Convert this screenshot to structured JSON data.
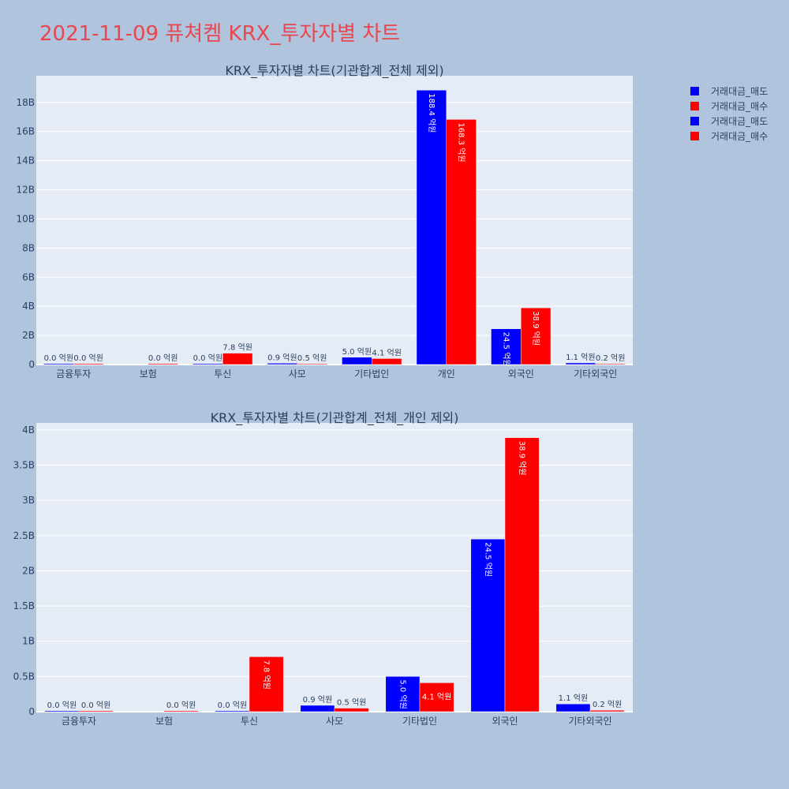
{
  "title": "2021-11-09 퓨쳐켐 KRX_투자자별 차트",
  "legend": [
    {
      "label": "거래대금_매도",
      "color": "#0000ff"
    },
    {
      "label": "거래대금_매수",
      "color": "#ff0000"
    },
    {
      "label": "거래대금_매도",
      "color": "#0000ff"
    },
    {
      "label": "거래대금_매수",
      "color": "#ff0000"
    }
  ],
  "chart_data": [
    {
      "type": "bar",
      "title": "KRX_투자자별 차트(기관합계_전체 제외)",
      "categories": [
        "금융투자",
        "보험",
        "투신",
        "사모",
        "기타법인",
        "개인",
        "외국인",
        "기타외국인"
      ],
      "series": [
        {
          "name": "거래대금_매도",
          "color": "#0000ff",
          "values": [
            0,
            null,
            0,
            90000000,
            500000000,
            18840000000,
            2450000000,
            110000000
          ],
          "labels": [
            "0.0 억원",
            "",
            "0.0 억원",
            "0.9 억원",
            "5.0 억원",
            "188.4 억원",
            "24.5 억원",
            "1.1 억원"
          ]
        },
        {
          "name": "거래대금_매수",
          "color": "#ff0000",
          "values": [
            0,
            0,
            780000000,
            50000000,
            410000000,
            16830000000,
            3890000000,
            20000000
          ],
          "labels": [
            "0.0 억원",
            "0.0 억원",
            "7.8 억원",
            "0.5 억원",
            "4.1 억원",
            "168.3 억원",
            "38.9 억원",
            "0.2 억원"
          ]
        }
      ],
      "yticks": [
        "0",
        "2B",
        "4B",
        "6B",
        "8B",
        "10B",
        "12B",
        "14B",
        "16B",
        "18B"
      ],
      "ylim": [
        0,
        19830000000
      ],
      "grid": true
    },
    {
      "type": "bar",
      "title": "KRX_투자자별 차트(기관합계_전체_개인 제외)",
      "categories": [
        "금융투자",
        "보험",
        "투신",
        "사모",
        "기타법인",
        "외국인",
        "기타외국인"
      ],
      "series": [
        {
          "name": "거래대금_매도",
          "color": "#0000ff",
          "values": [
            0,
            null,
            0,
            90000000,
            500000000,
            2450000000,
            110000000
          ],
          "labels": [
            "0.0 억원",
            "",
            "0.0 억원",
            "0.9 억원",
            "5.0 억원",
            "24.5 억원",
            "1.1 억원"
          ]
        },
        {
          "name": "거래대금_매수",
          "color": "#ff0000",
          "values": [
            0,
            0,
            780000000,
            50000000,
            410000000,
            3890000000,
            20000000
          ],
          "labels": [
            "0.0 억원",
            "0.0 억원",
            "7.8 억원",
            "0.5 억원",
            "4.1 억원",
            "38.9 억원",
            "0.2 억원"
          ]
        }
      ],
      "yticks": [
        "0",
        "0.5B",
        "1B",
        "1.5B",
        "2B",
        "2.5B",
        "3B",
        "3.5B",
        "4B"
      ],
      "ylim": [
        0,
        4100000000
      ],
      "grid": true
    }
  ]
}
